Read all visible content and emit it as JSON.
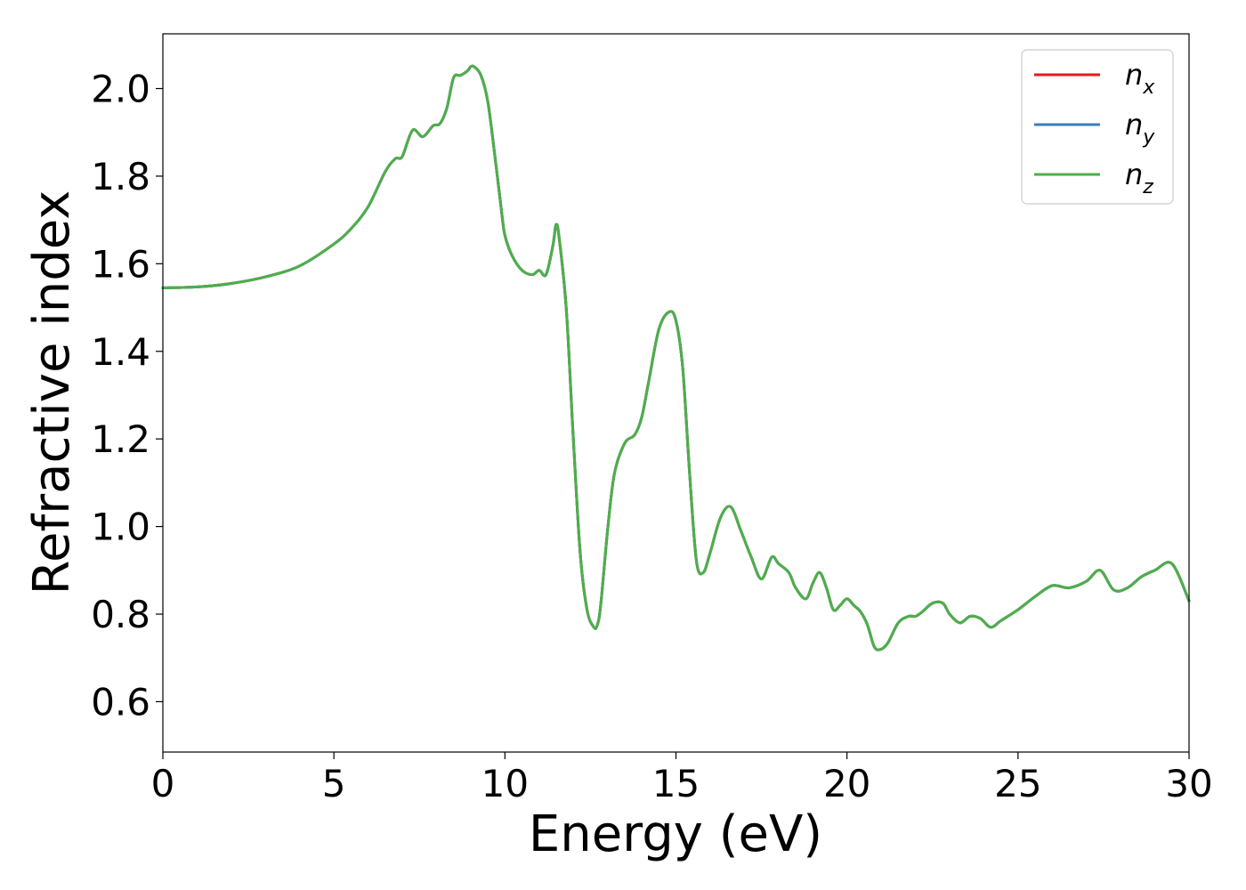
{
  "chart_data": {
    "type": "line",
    "title": "",
    "xlabel": "Energy (eV)",
    "ylabel": "Refractive index",
    "xlim": [
      0,
      30
    ],
    "ylim": [
      0.485,
      2.125
    ],
    "xticks": [
      "0",
      "5",
      "10",
      "15",
      "20",
      "25",
      "30"
    ],
    "xtick_values": [
      0,
      5,
      10,
      15,
      20,
      25,
      30
    ],
    "yticks": [
      "0.6",
      "0.8",
      "1.0",
      "1.2",
      "1.4",
      "1.6",
      "1.8",
      "2.0"
    ],
    "ytick_values": [
      0.6,
      0.8,
      1.0,
      1.2,
      1.4,
      1.6,
      1.8,
      2.0
    ],
    "grid": false,
    "legend_position": "top-right",
    "x": [
      0,
      1,
      2,
      3,
      4,
      5,
      5.5,
      6,
      6.5,
      6.8,
      7,
      7.3,
      7.6,
      7.9,
      8.1,
      8.3,
      8.5,
      8.7,
      8.9,
      9.0,
      9.1,
      9.3,
      9.5,
      9.7,
      9.9,
      10.0,
      10.2,
      10.5,
      10.8,
      11.0,
      11.2,
      11.4,
      11.5,
      11.6,
      11.8,
      12.0,
      12.2,
      12.4,
      12.6,
      12.7,
      12.8,
      13.0,
      13.2,
      13.5,
      13.8,
      14.0,
      14.2,
      14.5,
      14.8,
      15.0,
      15.2,
      15.4,
      15.6,
      15.8,
      16.0,
      16.3,
      16.6,
      16.9,
      17.2,
      17.5,
      17.8,
      18.0,
      18.3,
      18.5,
      18.8,
      19.0,
      19.2,
      19.4,
      19.6,
      19.8,
      20.0,
      20.2,
      20.4,
      20.6,
      20.8,
      21.0,
      21.2,
      21.5,
      21.8,
      22.0,
      22.2,
      22.5,
      22.8,
      23.0,
      23.3,
      23.6,
      23.9,
      24.2,
      24.5,
      25.0,
      25.5,
      26.0,
      26.5,
      27.0,
      27.4,
      27.8,
      28.2,
      28.6,
      29.0,
      29.5,
      30.0
    ],
    "series": [
      {
        "name": "n_x",
        "color": "#e41a1c",
        "values": [
          1.545,
          1.547,
          1.555,
          1.57,
          1.595,
          1.645,
          1.68,
          1.73,
          1.81,
          1.84,
          1.845,
          1.905,
          1.89,
          1.915,
          1.92,
          1.955,
          2.025,
          2.03,
          2.04,
          2.05,
          2.05,
          2.03,
          1.97,
          1.85,
          1.72,
          1.665,
          1.62,
          1.585,
          1.575,
          1.585,
          1.575,
          1.64,
          1.69,
          1.65,
          1.49,
          1.2,
          0.94,
          0.81,
          0.77,
          0.775,
          0.82,
          0.99,
          1.12,
          1.19,
          1.21,
          1.25,
          1.33,
          1.45,
          1.49,
          1.47,
          1.36,
          1.12,
          0.92,
          0.895,
          0.94,
          1.02,
          1.045,
          0.99,
          0.93,
          0.88,
          0.93,
          0.915,
          0.895,
          0.86,
          0.835,
          0.87,
          0.895,
          0.86,
          0.81,
          0.82,
          0.835,
          0.82,
          0.805,
          0.775,
          0.725,
          0.72,
          0.735,
          0.78,
          0.795,
          0.795,
          0.805,
          0.825,
          0.825,
          0.8,
          0.78,
          0.795,
          0.79,
          0.77,
          0.785,
          0.81,
          0.84,
          0.865,
          0.86,
          0.875,
          0.9,
          0.855,
          0.86,
          0.885,
          0.9,
          0.915,
          0.83
        ]
      },
      {
        "name": "n_y",
        "color": "#377eb8",
        "values": [
          1.545,
          1.547,
          1.555,
          1.57,
          1.595,
          1.645,
          1.68,
          1.73,
          1.81,
          1.84,
          1.845,
          1.905,
          1.89,
          1.915,
          1.92,
          1.955,
          2.025,
          2.03,
          2.04,
          2.05,
          2.05,
          2.03,
          1.97,
          1.85,
          1.72,
          1.665,
          1.62,
          1.585,
          1.575,
          1.585,
          1.575,
          1.64,
          1.69,
          1.65,
          1.49,
          1.2,
          0.94,
          0.81,
          0.77,
          0.775,
          0.82,
          0.99,
          1.12,
          1.19,
          1.21,
          1.25,
          1.33,
          1.45,
          1.49,
          1.47,
          1.36,
          1.12,
          0.92,
          0.895,
          0.94,
          1.02,
          1.045,
          0.99,
          0.93,
          0.88,
          0.93,
          0.915,
          0.895,
          0.86,
          0.835,
          0.87,
          0.895,
          0.86,
          0.81,
          0.82,
          0.835,
          0.82,
          0.805,
          0.775,
          0.725,
          0.72,
          0.735,
          0.78,
          0.795,
          0.795,
          0.805,
          0.825,
          0.825,
          0.8,
          0.78,
          0.795,
          0.79,
          0.77,
          0.785,
          0.81,
          0.84,
          0.865,
          0.86,
          0.875,
          0.9,
          0.855,
          0.86,
          0.885,
          0.9,
          0.915,
          0.83
        ]
      },
      {
        "name": "n_z",
        "color": "#4daf4a",
        "values": [
          1.545,
          1.547,
          1.555,
          1.57,
          1.595,
          1.645,
          1.68,
          1.73,
          1.81,
          1.84,
          1.845,
          1.905,
          1.89,
          1.915,
          1.92,
          1.955,
          2.025,
          2.03,
          2.04,
          2.05,
          2.05,
          2.03,
          1.97,
          1.85,
          1.72,
          1.665,
          1.62,
          1.585,
          1.575,
          1.585,
          1.575,
          1.64,
          1.69,
          1.65,
          1.49,
          1.2,
          0.94,
          0.81,
          0.77,
          0.775,
          0.82,
          0.99,
          1.12,
          1.19,
          1.21,
          1.25,
          1.33,
          1.45,
          1.49,
          1.47,
          1.36,
          1.12,
          0.92,
          0.895,
          0.94,
          1.02,
          1.045,
          0.99,
          0.93,
          0.88,
          0.93,
          0.915,
          0.895,
          0.86,
          0.835,
          0.87,
          0.895,
          0.86,
          0.81,
          0.82,
          0.835,
          0.82,
          0.805,
          0.775,
          0.725,
          0.72,
          0.735,
          0.78,
          0.795,
          0.795,
          0.805,
          0.825,
          0.825,
          0.8,
          0.78,
          0.795,
          0.79,
          0.77,
          0.785,
          0.81,
          0.84,
          0.865,
          0.86,
          0.875,
          0.9,
          0.855,
          0.86,
          0.885,
          0.9,
          0.915,
          0.83
        ]
      }
    ],
    "legend": [
      {
        "base": "n",
        "sub": "x"
      },
      {
        "base": "n",
        "sub": "y"
      },
      {
        "base": "n",
        "sub": "z"
      }
    ]
  }
}
